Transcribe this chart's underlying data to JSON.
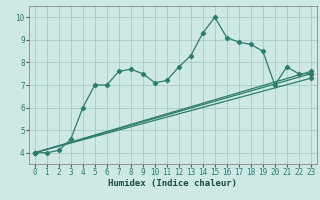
{
  "xlabel": "Humidex (Indice chaleur)",
  "bg_color": "#cde8e5",
  "grid_color": "#a8ccc8",
  "line_color": "#2d7d6e",
  "xlim": [
    -0.5,
    23.5
  ],
  "ylim": [
    3.5,
    10.5
  ],
  "xticks": [
    0,
    1,
    2,
    3,
    4,
    5,
    6,
    7,
    8,
    9,
    10,
    11,
    12,
    13,
    14,
    15,
    16,
    17,
    18,
    19,
    20,
    21,
    22,
    23
  ],
  "yticks": [
    4,
    5,
    6,
    7,
    8,
    9,
    10
  ],
  "line1_x": [
    0,
    1,
    2,
    3,
    4,
    5,
    6,
    7,
    8,
    9,
    10,
    11,
    12,
    13,
    14,
    15,
    16,
    17,
    18,
    19,
    20,
    21,
    22,
    23
  ],
  "line1_y": [
    4.0,
    4.0,
    4.1,
    4.6,
    6.0,
    7.0,
    7.0,
    7.6,
    7.7,
    7.5,
    7.1,
    7.2,
    7.8,
    8.3,
    9.3,
    10.0,
    9.1,
    8.9,
    8.8,
    8.5,
    7.0,
    7.8,
    7.5,
    7.5
  ],
  "line2_x": [
    0,
    23
  ],
  "line2_y": [
    4.0,
    7.6
  ],
  "line3_x": [
    0,
    23
  ],
  "line3_y": [
    4.0,
    7.5
  ],
  "line4_x": [
    0,
    23
  ],
  "line4_y": [
    4.0,
    7.3
  ],
  "tick_fontsize": 5.5,
  "xlabel_fontsize": 6.5
}
